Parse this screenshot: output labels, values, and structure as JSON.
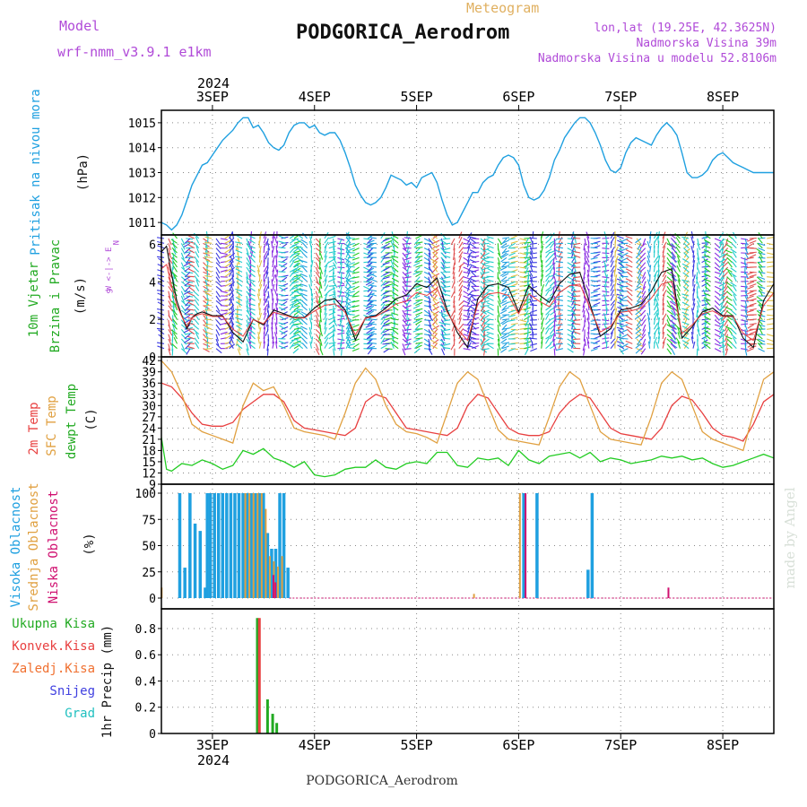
{
  "header": {
    "model_label": "Model",
    "model_name": "wrf-nmm_v3.9.1  e1km",
    "meteogram_label": "Meteogram",
    "station_title": "PODGORICA_Aerodrom",
    "lonlat": "lon,lat (19.25E, 42.3625N)",
    "altitude": "Nadmorska Visina 39m",
    "model_altitude": "Nadmorska Visina u modelu 52.8106m",
    "footer_station": "PODGORICA_Aerodrom",
    "watermark": "made by Angel"
  },
  "colors": {
    "pressure": "#1fa0e0",
    "wind_green": "#22cc22",
    "wind_purple": "#b04ad8",
    "temp2m": "#e84040",
    "sfc_temp": "#e0a040",
    "dewpt": "#22cc22",
    "high_cloud": "#1fa0e0",
    "mid_cloud": "#e0a040",
    "low_cloud": "#d01070",
    "precip_total": "#22aa22",
    "precip_conv": "#e84040",
    "precip_frozen": "#f07030",
    "snow": "#4040e0",
    "graupel": "#20c0c0"
  },
  "chart_data": [
    {
      "type": "line",
      "panel": "pressure",
      "ylabel_main": "Pritisak na nivou mora",
      "ylabel_unit": "(hPa)",
      "ylim": [
        1010.5,
        1015.5
      ],
      "yticks": [
        "1011",
        "1012",
        "1013",
        "1014",
        "1015"
      ],
      "xlim": [
        2.5,
        8.5
      ],
      "x_top_ticks": [
        "3SEP",
        "4SEP",
        "5SEP",
        "6SEP",
        "7SEP",
        "8SEP"
      ],
      "x_top_year": "2024",
      "grid": true,
      "series": [
        {
          "x": [
            2.5,
            2.55,
            2.6,
            2.65,
            2.7,
            2.75,
            2.8,
            2.85,
            2.9,
            2.95,
            3.0,
            3.05,
            3.1,
            3.15,
            3.2,
            3.25,
            3.3,
            3.35,
            3.4,
            3.45,
            3.5,
            3.55,
            3.6,
            3.65,
            3.7,
            3.75,
            3.8,
            3.85,
            3.9,
            3.95,
            4.0,
            4.05,
            4.1,
            4.15,
            4.2,
            4.25,
            4.3,
            4.35,
            4.4,
            4.45,
            4.5,
            4.55,
            4.6,
            4.65,
            4.7,
            4.75,
            4.8,
            4.85,
            4.9,
            4.95,
            5.0,
            5.05,
            5.1,
            5.15,
            5.2,
            5.25,
            5.3,
            5.35,
            5.4,
            5.45,
            5.5,
            5.55,
            5.6,
            5.65,
            5.7,
            5.75,
            5.8,
            5.85,
            5.9,
            5.95,
            6.0,
            6.05,
            6.1,
            6.15,
            6.2,
            6.25,
            6.3,
            6.35,
            6.4,
            6.45,
            6.5,
            6.55,
            6.6,
            6.65,
            6.7,
            6.75,
            6.8,
            6.85,
            6.9,
            6.95,
            7.0,
            7.05,
            7.1,
            7.15,
            7.2,
            7.25,
            7.3,
            7.35,
            7.4,
            7.45,
            7.5,
            7.55,
            7.6,
            7.65,
            7.7,
            7.75,
            7.8,
            7.85,
            7.9,
            7.95,
            8.0,
            8.05,
            8.1,
            8.15,
            8.2,
            8.25,
            8.3,
            8.35,
            8.4,
            8.45,
            8.5
          ],
          "values": [
            1011.0,
            1010.9,
            1010.7,
            1010.9,
            1011.3,
            1011.9,
            1012.5,
            1012.9,
            1013.3,
            1013.4,
            1013.7,
            1014.0,
            1014.3,
            1014.5,
            1014.7,
            1015.0,
            1015.2,
            1015.2,
            1014.8,
            1014.9,
            1014.6,
            1014.2,
            1014.0,
            1013.9,
            1014.1,
            1014.6,
            1014.9,
            1015.0,
            1015.0,
            1014.8,
            1014.9,
            1014.6,
            1014.5,
            1014.6,
            1014.6,
            1014.3,
            1013.8,
            1013.2,
            1012.5,
            1012.1,
            1011.8,
            1011.7,
            1011.8,
            1012.0,
            1012.4,
            1012.9,
            1012.8,
            1012.7,
            1012.5,
            1012.6,
            1012.4,
            1012.8,
            1012.9,
            1013.0,
            1012.6,
            1011.9,
            1011.3,
            1010.9,
            1011.0,
            1011.4,
            1011.8,
            1012.2,
            1012.2,
            1012.6,
            1012.8,
            1012.9,
            1013.3,
            1013.6,
            1013.7,
            1013.6,
            1013.3,
            1012.5,
            1012.0,
            1011.9,
            1012.0,
            1012.3,
            1012.8,
            1013.5,
            1013.9,
            1014.4,
            1014.7,
            1015.0,
            1015.2,
            1015.2,
            1015.0,
            1014.6,
            1014.1,
            1013.5,
            1013.1,
            1013.0,
            1013.2,
            1013.8,
            1014.2,
            1014.4,
            1014.3,
            1014.2,
            1014.1,
            1014.5,
            1014.8,
            1015.0,
            1014.8,
            1014.5,
            1013.8,
            1013.0,
            1012.8,
            1012.8,
            1012.9,
            1013.1,
            1013.5,
            1013.7,
            1013.8,
            1013.6,
            1013.4,
            1013.3,
            1013.2,
            1013.1,
            1013.0,
            1013.0,
            1013.0,
            1013.0,
            1013.0
          ]
        }
      ]
    },
    {
      "type": "line",
      "panel": "wind",
      "ylabel_main": "10m Vjetar",
      "ylabel_sub": "Brzina i Pravac",
      "ylabel_unit": "(m/s)",
      "compass_label": "W <-|-> E",
      "compass_n": "N",
      "compass_s": "S",
      "ylim": [
        0,
        6.5
      ],
      "yticks": [
        "0",
        "2",
        "4",
        "6"
      ],
      "series": [
        {
          "name": "speed",
          "x": [
            2.5,
            2.55,
            2.6,
            2.65,
            2.7,
            2.75,
            2.8,
            2.85,
            2.9,
            2.95,
            3.0,
            3.1,
            3.2,
            3.3,
            3.4,
            3.5,
            3.6,
            3.7,
            3.8,
            3.9,
            4.0,
            4.1,
            4.2,
            4.3,
            4.4,
            4.5,
            4.6,
            4.7,
            4.8,
            4.9,
            5.0,
            5.1,
            5.2,
            5.3,
            5.4,
            5.5,
            5.6,
            5.7,
            5.8,
            5.9,
            6.0,
            6.1,
            6.2,
            6.3,
            6.4,
            6.5,
            6.6,
            6.7,
            6.8,
            6.9,
            7.0,
            7.1,
            7.2,
            7.3,
            7.4,
            7.5,
            7.6,
            7.7,
            7.8,
            7.9,
            8.0,
            8.1,
            8.2,
            8.3,
            8.4,
            8.5
          ],
          "values": [
            5.6,
            5.9,
            4.4,
            3.0,
            2.2,
            1.5,
            2.1,
            2.3,
            2.4,
            2.3,
            2.2,
            2.2,
            1.3,
            0.8,
            2.0,
            1.7,
            2.5,
            2.3,
            2.1,
            2.1,
            2.6,
            3.0,
            3.1,
            2.5,
            0.9,
            2.1,
            2.2,
            2.6,
            3.1,
            3.3,
            3.9,
            3.7,
            4.2,
            2.5,
            1.3,
            0.5,
            3.1,
            3.8,
            3.9,
            3.7,
            2.4,
            3.8,
            3.3,
            2.9,
            3.9,
            4.4,
            4.5,
            2.8,
            1.1,
            1.5,
            2.5,
            2.6,
            2.8,
            3.5,
            4.5,
            4.7,
            1.0,
            1.6,
            2.4,
            2.6,
            2.2,
            2.2,
            1.0,
            0.5,
            3.0,
            3.9
          ]
        }
      ]
    },
    {
      "type": "line",
      "panel": "temperature",
      "ylabel_a": "2m Temp",
      "ylabel_b": "SFC Temp",
      "ylabel_c": "dewpt Temp",
      "ylabel_unit": "(C)",
      "ylim": [
        9,
        43
      ],
      "yticks": [
        "9",
        "12",
        "15",
        "18",
        "21",
        "24",
        "27",
        "30",
        "33",
        "36",
        "39",
        "42"
      ],
      "series": [
        {
          "name": "2m Temp",
          "x": [
            2.5,
            2.6,
            2.7,
            2.8,
            2.9,
            3.0,
            3.1,
            3.2,
            3.3,
            3.4,
            3.5,
            3.6,
            3.7,
            3.8,
            3.9,
            4.0,
            4.1,
            4.2,
            4.3,
            4.4,
            4.5,
            4.6,
            4.7,
            4.8,
            4.9,
            5.0,
            5.1,
            5.2,
            5.3,
            5.4,
            5.5,
            5.6,
            5.7,
            5.8,
            5.9,
            6.0,
            6.1,
            6.2,
            6.3,
            6.4,
            6.5,
            6.6,
            6.7,
            6.8,
            6.9,
            7.0,
            7.1,
            7.2,
            7.3,
            7.4,
            7.5,
            7.6,
            7.7,
            7.8,
            7.9,
            8.0,
            8.1,
            8.2,
            8.3,
            8.4,
            8.5
          ],
          "values": [
            36,
            35,
            32,
            28,
            25,
            24.5,
            24.5,
            25.5,
            29,
            31,
            33,
            33,
            31,
            26,
            24,
            23.5,
            23,
            22.5,
            22,
            24,
            31,
            33,
            32,
            28,
            24,
            23.5,
            23,
            22.5,
            22,
            24,
            30,
            33,
            32,
            28,
            24,
            22.5,
            22,
            22,
            23,
            28,
            31,
            33,
            32,
            28,
            24,
            22.5,
            22,
            21.5,
            21,
            24,
            30,
            32.5,
            31.5,
            28,
            24,
            22,
            21.5,
            20.5,
            25,
            31,
            33
          ]
        },
        {
          "name": "SFC Temp",
          "x": [
            2.5,
            2.6,
            2.7,
            2.8,
            2.9,
            3.0,
            3.1,
            3.2,
            3.3,
            3.4,
            3.5,
            3.6,
            3.7,
            3.8,
            3.9,
            4.0,
            4.1,
            4.2,
            4.3,
            4.4,
            4.5,
            4.6,
            4.7,
            4.8,
            4.9,
            5.0,
            5.1,
            5.2,
            5.3,
            5.4,
            5.5,
            5.6,
            5.7,
            5.8,
            5.9,
            6.0,
            6.1,
            6.2,
            6.3,
            6.4,
            6.5,
            6.6,
            6.7,
            6.8,
            6.9,
            7.0,
            7.1,
            7.2,
            7.3,
            7.4,
            7.5,
            7.6,
            7.7,
            7.8,
            7.9,
            8.0,
            8.1,
            8.2,
            8.3,
            8.4,
            8.5
          ],
          "values": [
            42,
            39,
            33,
            25,
            23,
            22,
            21,
            20,
            30,
            36,
            34,
            35,
            30,
            24,
            23,
            22.5,
            22,
            21,
            28,
            36,
            40,
            37,
            30,
            25,
            23,
            22.5,
            21.5,
            20,
            28,
            36,
            39,
            37,
            30,
            23.5,
            21,
            20.5,
            20,
            19.5,
            27,
            35,
            39,
            37,
            30,
            23,
            21,
            20.5,
            20,
            19.5,
            27,
            36,
            39,
            37,
            30,
            23,
            21,
            20,
            19,
            18,
            28,
            37,
            39
          ]
        },
        {
          "name": "dewpt Temp",
          "x": [
            2.5,
            2.55,
            2.6,
            2.7,
            2.8,
            2.9,
            3.0,
            3.1,
            3.2,
            3.3,
            3.4,
            3.5,
            3.6,
            3.7,
            3.8,
            3.9,
            4.0,
            4.1,
            4.2,
            4.3,
            4.4,
            4.5,
            4.6,
            4.7,
            4.8,
            4.9,
            5.0,
            5.1,
            5.2,
            5.3,
            5.4,
            5.5,
            5.6,
            5.7,
            5.8,
            5.9,
            6.0,
            6.1,
            6.2,
            6.3,
            6.4,
            6.5,
            6.6,
            6.7,
            6.8,
            6.9,
            7.0,
            7.1,
            7.2,
            7.3,
            7.4,
            7.5,
            7.6,
            7.7,
            7.8,
            7.9,
            8.0,
            8.1,
            8.2,
            8.3,
            8.4,
            8.5
          ],
          "values": [
            21.5,
            13,
            12.5,
            14.5,
            14,
            15.5,
            14.5,
            13,
            14,
            18,
            17,
            18.5,
            16,
            15,
            13.5,
            15,
            11.5,
            11,
            11.5,
            13,
            13.5,
            13.5,
            15.5,
            13.5,
            13,
            14.5,
            15,
            14.5,
            17.5,
            17.5,
            14,
            13.5,
            16,
            15.5,
            16,
            14,
            18,
            15.5,
            14.5,
            16.5,
            17,
            17.5,
            16,
            17.5,
            15,
            16,
            15.5,
            14.5,
            15,
            15.5,
            16.5,
            16,
            16.5,
            15.5,
            16,
            14.5,
            13.5,
            14,
            15,
            16,
            17,
            16
          ]
        }
      ]
    },
    {
      "type": "bar",
      "panel": "clouds",
      "ylabel_a": "Visoka Oblacnost",
      "ylabel_b": "Srednja Oblacnost",
      "ylabel_c": "Niska Oblacnost",
      "ylabel_unit": "(%)",
      "ylim": [
        0,
        100
      ],
      "yticks": [
        "0",
        "25",
        "50",
        "75",
        "100"
      ],
      "series": [
        {
          "name": "Visoka Oblacnost",
          "x": [
            2.68,
            2.73,
            2.78,
            2.83,
            2.88,
            2.93,
            2.95,
            2.98,
            3.02,
            3.06,
            3.1,
            3.14,
            3.18,
            3.22,
            3.26,
            3.3,
            3.34,
            3.38,
            3.42,
            3.46,
            3.5,
            3.54,
            3.58,
            3.62,
            3.66,
            3.7,
            3.74,
            6.05,
            6.18,
            6.68,
            6.72
          ],
          "values": [
            100,
            29,
            100,
            71,
            64,
            10,
            100,
            100,
            100,
            100,
            100,
            100,
            100,
            100,
            100,
            100,
            100,
            100,
            100,
            100,
            100,
            62,
            47,
            47,
            100,
            100,
            29,
            100,
            100,
            27,
            100
          ]
        },
        {
          "name": "Srednja Oblacnost",
          "x": [
            2.52,
            3.34,
            3.38,
            3.42,
            3.46,
            3.5,
            3.54,
            3.58,
            3.62,
            3.66,
            3.7,
            6.03,
            5.58
          ],
          "values": [
            10,
            100,
            100,
            100,
            100,
            100,
            85,
            40,
            35,
            30,
            40,
            100,
            4
          ]
        },
        {
          "name": "Niska Oblacnost",
          "x": [
            3.58,
            3.6,
            6.05,
            7.45
          ],
          "values": [
            22,
            15,
            100,
            10
          ]
        }
      ]
    },
    {
      "type": "bar",
      "panel": "precip",
      "legend": [
        "Ukupna Kisa",
        "Konvek.Kisa",
        "Zaledj.Kisa",
        "Snijeg",
        "Grad"
      ],
      "ylabel_unit": "1hr Precip (mm)",
      "ylim": [
        0,
        0.95
      ],
      "yticks": [
        "0",
        "0.2",
        "0.4",
        "0.6",
        "0.8"
      ],
      "x_bottom_ticks": [
        "3SEP",
        "4SEP",
        "5SEP",
        "6SEP",
        "7SEP",
        "8SEP"
      ],
      "x_bottom_year": "2024",
      "series": [
        {
          "name": "Ukupna Kisa",
          "x": [
            3.44,
            3.54,
            3.59,
            3.63
          ],
          "values": [
            0.88,
            0.26,
            0.15,
            0.08
          ]
        },
        {
          "name": "Konvek.Kisa",
          "x": [
            3.46
          ],
          "values": [
            0.88
          ]
        }
      ]
    }
  ]
}
